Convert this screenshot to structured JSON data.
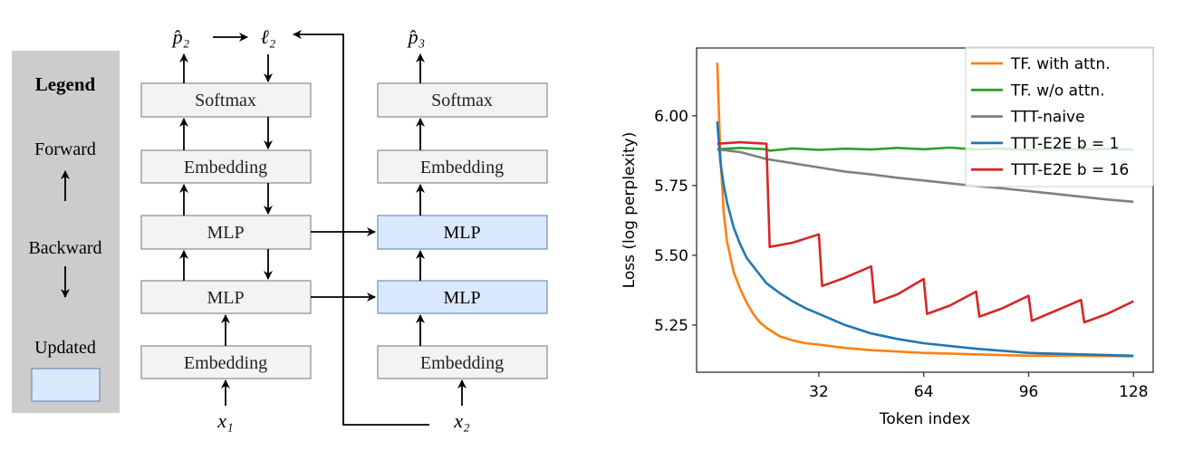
{
  "diagram": {
    "legend": {
      "title": "Legend",
      "forward": "Forward",
      "backward": "Backward",
      "updated": "Updated",
      "updated_color": "#dae8fc"
    },
    "left_column": {
      "softmax": "Softmax",
      "embedding_top": "Embedding",
      "mlp_upper": "MLP",
      "mlp_lower": "MLP",
      "embedding_bottom": "Embedding",
      "input": "x₁",
      "output": "p̂₂",
      "loss": "ℓ₂"
    },
    "right_column": {
      "softmax": "Softmax",
      "embedding_top": "Embedding",
      "mlp_upper": "MLP",
      "mlp_lower": "MLP",
      "embedding_bottom": "Embedding",
      "input": "x₂",
      "output": "p̂₃"
    }
  },
  "chart_data": {
    "type": "line",
    "title": "",
    "xlabel": "Token index",
    "ylabel": "Loss (log perplexity)",
    "xlim": [
      -5.3,
      134
    ],
    "ylim": [
      5.081,
      6.243
    ],
    "xticks": [
      "32",
      "64",
      "96",
      "128"
    ],
    "yticks": [
      "6.00",
      "5.75",
      "5.50",
      "5.25"
    ],
    "legend_position": "top-right",
    "series": [
      {
        "name": "TF. with attn.",
        "color": "#ff7f0e",
        "x": [
          1,
          2,
          3,
          4,
          6,
          8,
          10,
          12,
          14,
          16,
          20,
          24,
          28,
          32,
          40,
          48,
          56,
          64,
          80,
          96,
          112,
          128
        ],
        "y": [
          6.19,
          5.85,
          5.65,
          5.55,
          5.44,
          5.38,
          5.33,
          5.29,
          5.26,
          5.24,
          5.21,
          5.195,
          5.185,
          5.18,
          5.168,
          5.16,
          5.155,
          5.15,
          5.145,
          5.14,
          5.14,
          5.138
        ]
      },
      {
        "name": "TF. w/o attn.",
        "color": "#2ca02c",
        "x": [
          1,
          8,
          16,
          17,
          24,
          32,
          40,
          48,
          56,
          64,
          72,
          80,
          88,
          96,
          104,
          112,
          120,
          128
        ],
        "y": [
          5.88,
          5.885,
          5.88,
          5.875,
          5.883,
          5.878,
          5.882,
          5.879,
          5.885,
          5.88,
          5.886,
          5.879,
          5.882,
          5.878,
          5.88,
          5.879,
          5.881,
          5.879
        ]
      },
      {
        "name": "TTT-naive",
        "color": "#7f7f7f",
        "x": [
          1,
          8,
          16,
          24,
          32,
          40,
          48,
          56,
          64,
          72,
          80,
          88,
          96,
          104,
          112,
          120,
          128
        ],
        "y": [
          5.88,
          5.87,
          5.845,
          5.83,
          5.815,
          5.8,
          5.79,
          5.778,
          5.768,
          5.758,
          5.748,
          5.74,
          5.73,
          5.72,
          5.71,
          5.7,
          5.692
        ]
      },
      {
        "name": "TTT-E2E b = 1",
        "color": "#1f77b4",
        "x": [
          1,
          2,
          3,
          4,
          6,
          8,
          10,
          12,
          14,
          16,
          20,
          24,
          28,
          32,
          40,
          48,
          56,
          64,
          80,
          96,
          112,
          128
        ],
        "y": [
          5.98,
          5.83,
          5.75,
          5.69,
          5.6,
          5.54,
          5.49,
          5.46,
          5.43,
          5.4,
          5.365,
          5.335,
          5.31,
          5.29,
          5.25,
          5.22,
          5.2,
          5.185,
          5.165,
          5.15,
          5.145,
          5.14
        ]
      },
      {
        "name": "TTT-E2E b = 16",
        "color": "#d62728",
        "x": [
          1,
          8,
          16,
          17,
          24,
          32,
          33,
          40,
          48,
          49,
          56,
          64,
          65,
          72,
          80,
          81,
          88,
          96,
          97,
          104,
          112,
          113,
          120,
          128
        ],
        "y": [
          5.9,
          5.905,
          5.9,
          5.53,
          5.545,
          5.575,
          5.39,
          5.42,
          5.46,
          5.33,
          5.36,
          5.415,
          5.29,
          5.32,
          5.37,
          5.28,
          5.31,
          5.355,
          5.265,
          5.3,
          5.34,
          5.26,
          5.29,
          5.335
        ]
      }
    ]
  }
}
